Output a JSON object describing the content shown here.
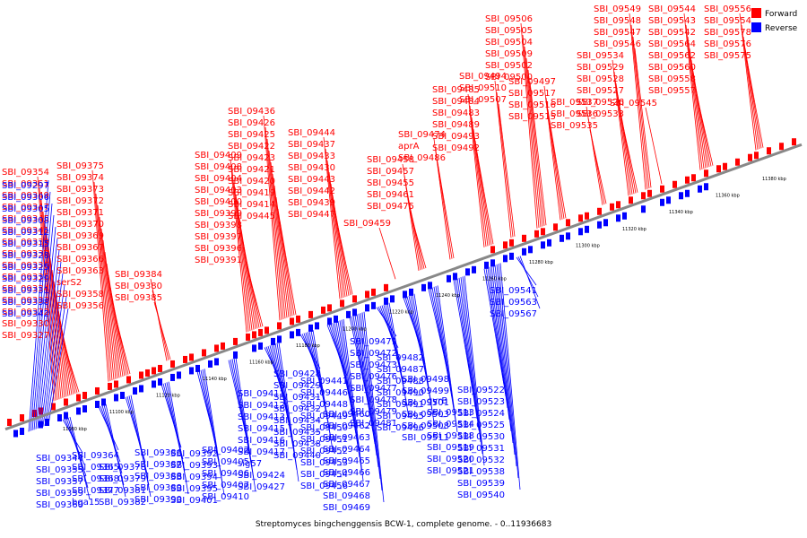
{
  "colors": {
    "forward": "#ff0000",
    "reverse": "#0000ff",
    "axis": "#888888",
    "ink": "#000000"
  },
  "legend": {
    "forward_label": "Forward",
    "reverse_label": "Reverse"
  },
  "caption": "Streptomyces bingchenggensis BCW-1, complete genome. - 0..11936683",
  "chart_data": {
    "type": "genome-map",
    "unit": "kbp",
    "ticks": [
      "11080 kbp",
      "11100 kbp",
      "11120 kbp",
      "11140 kbp",
      "11160 kbp",
      "11180 kbp",
      "11200 kbp",
      "11220 kbp",
      "11240 kbp",
      "11260 kbp",
      "11280 kbp",
      "11300 kbp",
      "11320 kbp",
      "11340 kbp",
      "11360 kbp",
      "11380 kbp"
    ],
    "forward_genes": [
      "SBI_09354",
      "SBI_09351",
      "SBI_09349",
      "SBI_09347",
      "SBI_09345",
      "SBI_09341",
      "SBI_09339",
      "SBI_09337",
      "SBI_09336",
      "SBI_09335",
      "SBI_09334",
      "SBI_09333",
      "SBI_09332",
      "SBI_09330",
      "SBI_09327",
      "SBI_09375",
      "SBI_09374",
      "SBI_09373",
      "SBI_09372",
      "SBI_09371",
      "SBI_09370",
      "SBI_09369",
      "SBI_09367",
      "SBI_09366",
      "SBI_09363",
      "serS2",
      "SBI_09358",
      "SBI_09356",
      "SBI_09384",
      "SBI_09380",
      "SBI_09385",
      "SBI_09409",
      "SBI_09408",
      "SBI_09404",
      "SBI_09403",
      "SBI_09400",
      "SBI_09399",
      "SBI_09398",
      "SBI_09397",
      "SBI_09396",
      "SBI_09391",
      "SBI_09436",
      "SBI_09426",
      "SBI_09425",
      "SBI_09422",
      "SBI_09423",
      "SBI_09421",
      "SBI_09420",
      "SBI_09419",
      "SBI_09414",
      "SBI_09445",
      "SBI_09444",
      "SBI_09437",
      "SBI_09433",
      "SBI_09430",
      "SBI_09443",
      "SBI_09442",
      "SBI_09439",
      "SBI_09447",
      "SBI_09459",
      "SBI_09458",
      "SBI_09457",
      "SBI_09455",
      "SBI_09461",
      "SBI_09475",
      "SBI_09474",
      "aprA",
      "SBI_09486",
      "SBI_09485",
      "SBI_09484",
      "SBI_09483",
      "SBI_09489",
      "SBI_09493",
      "SBI_09492",
      "SBI_09494",
      "SBI_09510",
      "SBI_09507",
      "SBI_09506",
      "SBI_09505",
      "SBI_09504",
      "SBI_09509",
      "SBI_09502",
      "SBI_09500",
      "SBI_09497",
      "SBI_09517",
      "SBI_09516",
      "SBI_09515",
      "SBI_09537",
      "SBI_09536",
      "SBI_09535",
      "SBI_09534",
      "SBI_09529",
      "SBI_09528",
      "SBI_09527",
      "SBI_09526",
      "SBI_09533",
      "SBI_09549",
      "SBI_09548",
      "SBI_09547",
      "SBI_09546",
      "SBI_09545",
      "SBI_09544",
      "SBI_09543",
      "SBI_09542",
      "SBI_09564",
      "SBI_09562",
      "SBI_09560",
      "SBI_09558",
      "SBI_09557",
      "SBI_09556",
      "SBI_09554",
      "SBI_09578",
      "SBI_09576",
      "SBI_09575"
    ],
    "reverse_genes": [
      "SBI_09297",
      "SBI_09306",
      "SBI_09305",
      "SBI_09308",
      "SBI_09312",
      "SBI_09315",
      "SBI_09328",
      "SBI_09325",
      "SBI_09329",
      "SBI_09331",
      "SBI_09338",
      "SBI_09342",
      "SBI_09344",
      "SBI_09355",
      "SBI_09357",
      "SBI_09359",
      "SBI_09360",
      "SBI_09362",
      "SBI_09364",
      "SBI_09365",
      "SBI_09368",
      "SBI_09377",
      "bga15",
      "SBI_09378",
      "SBI_09379",
      "SBI_09381",
      "SBI_09382",
      "SBI_09383",
      "SBI_09386",
      "SBI_09387",
      "SBI_09388",
      "SBI_09389",
      "SBI_09390",
      "SBI_09392",
      "SBI_09393",
      "SBI_09394",
      "SBI_09395",
      "SBI_09401",
      "SBI_09402",
      "SBI_09405",
      "SBI_09406",
      "SBI_09407",
      "SBI_09410",
      "SBI_09411",
      "SBI_09412",
      "SBI_09413",
      "SBI_09415",
      "SBI_09416",
      "SBI_09417",
      "sig57",
      "SBI_09424",
      "SBI_09427",
      "SBI_09428",
      "SBI_09429",
      "SBI_09431",
      "SBI_09432",
      "SBI_09434",
      "SBI_09435",
      "SBI_09438",
      "SBI_09440",
      "SBI_09441",
      "SBI_09446",
      "SBI_09448",
      "SBI_09449",
      "SBI_09450",
      "SBI_09451",
      "SBI_09452",
      "SBI_09453",
      "SBI_09454",
      "SBI_09456",
      "SBI_09460",
      "SBI_09462",
      "SBI_09463",
      "SBI_09464",
      "SBI_09465",
      "SBI_09466",
      "SBI_09467",
      "SBI_09468",
      "SBI_09469",
      "SBI_09470",
      "SBI_09471",
      "SBI_09472",
      "SBI_09473",
      "SBI_09476",
      "SBI_09477",
      "SBI_09478",
      "SBI_09479",
      "SBI_09481",
      "SBI_09482",
      "SBI_09487",
      "SBI_09488",
      "SBI_09490",
      "SBI_09491",
      "SBI_09495",
      "SBI_09496",
      "SBI_09498",
      "SBI_09499",
      "SBI_09501",
      "SBI_09503",
      "SBI_09508",
      "SBI_09511",
      "gyrB",
      "SBI_09513",
      "SBI_09514",
      "SBI_09518",
      "SBI_09519",
      "SBI_09520",
      "SBI_09521",
      "SBI_09522",
      "SBI_09523",
      "SBI_09524",
      "SBI_09525",
      "SBI_09530",
      "SBI_09531",
      "SBI_09532",
      "SBI_09538",
      "SBI_09539",
      "SBI_09540",
      "SBI_09541",
      "SBI_09563",
      "SBI_09567"
    ]
  }
}
